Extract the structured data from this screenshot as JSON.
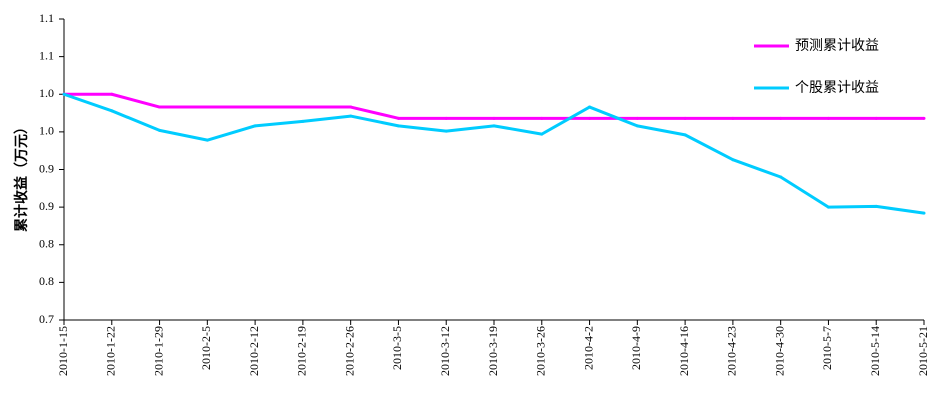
{
  "chart_data": {
    "type": "line",
    "ylabel": "累计收益（万元）",
    "ylim": [
      0.7,
      1.1
    ],
    "yticks": [
      "1.1",
      "1.1",
      "1.0",
      "1.0",
      "0.9",
      "0.9",
      "0.8",
      "0.8",
      "0.7"
    ],
    "categories": [
      "2010-1-15",
      "2010-1-22",
      "2010-1-29",
      "2010-2-5",
      "2010-2-12",
      "2010-2-19",
      "2010-2-26",
      "2010-3-5",
      "2010-3-12",
      "2010-3-19",
      "2010-3-26",
      "2010-4-2",
      "2010-4-9",
      "2010-4-16",
      "2010-4-23",
      "2010-4-30",
      "2010-5-7",
      "2010-5-14",
      "2010-5-21"
    ],
    "series": [
      {
        "name": "预测累计收益",
        "color": "#ff00ff",
        "values": [
          1.0,
          1.0,
          0.983,
          0.983,
          0.983,
          0.983,
          0.983,
          0.968,
          0.968,
          0.968,
          0.968,
          0.968,
          0.968,
          0.968,
          0.968,
          0.968,
          0.968,
          0.968,
          0.968
        ]
      },
      {
        "name": "个股累计收益",
        "color": "#00ccff",
        "values": [
          1.0,
          0.978,
          0.952,
          0.939,
          0.958,
          0.964,
          0.971,
          0.958,
          0.951,
          0.958,
          0.947,
          0.983,
          0.958,
          0.946,
          0.913,
          0.89,
          0.85,
          0.851,
          0.842
        ]
      }
    ],
    "legend_position": "top-right",
    "grid": false
  }
}
